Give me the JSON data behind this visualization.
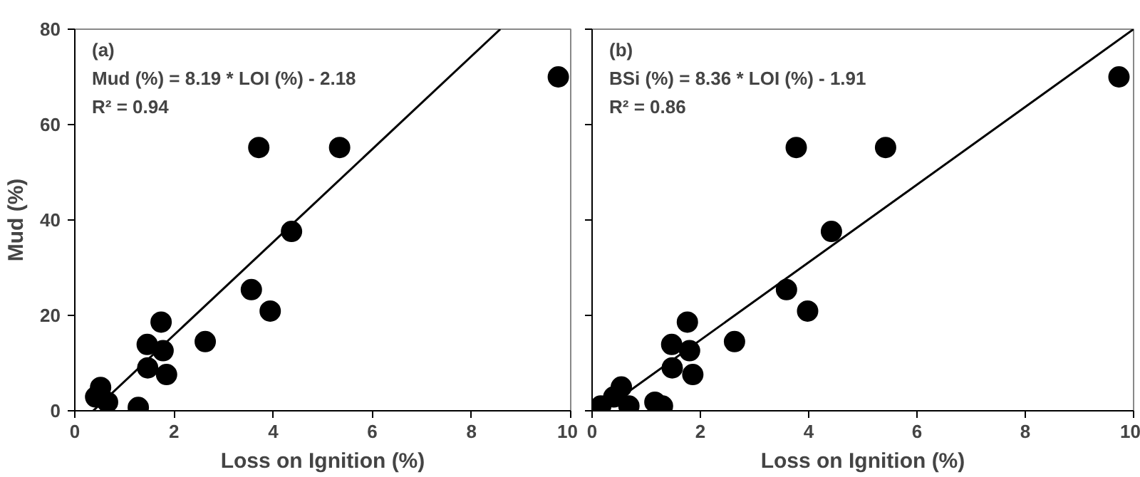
{
  "chart_data": [
    {
      "type": "scatter",
      "xlabel": "Loss on Ignition (%)",
      "ylabel": "Mud (%)",
      "annotations": [
        "(a)",
        "Mud (%) = 8.19  * LOI (%) - 2.18",
        "R² =  0.94"
      ],
      "xlim": [
        0,
        10
      ],
      "ylim": [
        0,
        80
      ],
      "xticks": [
        0,
        2,
        4,
        6,
        8,
        10
      ],
      "yticks": [
        0,
        20,
        40,
        60,
        80
      ],
      "grid": false,
      "marker": "circle",
      "series": [
        {
          "color": "#000000",
          "x": [
            9.75,
            3.71,
            5.34,
            4.37,
            3.56,
            3.94,
            1.74,
            1.46,
            1.78,
            2.63,
            1.47,
            1.85,
            1.28,
            0.52,
            0.42,
            0.66
          ],
          "values": [
            70,
            55.2,
            55.2,
            37.6,
            25.4,
            20.9,
            18.6,
            13.9,
            12.6,
            14.5,
            9.0,
            7.6,
            0.7,
            4.9,
            2.9,
            1.8
          ]
        },
        {
          "type": "line",
          "color": "#000000",
          "marker": "none",
          "line_style": "solid",
          "x": [
            0.37,
            8.58
          ],
          "values": [
            0,
            80
          ]
        }
      ]
    },
    {
      "type": "scatter",
      "xlabel": "Loss on Ignition (%)",
      "annotations": [
        "(b)",
        "BSi (%) = 8.36  * LOI (%) - 1.91",
        "R² =  0.86"
      ],
      "xlim": [
        0,
        10
      ],
      "ylim": [
        0,
        80
      ],
      "xticks": [
        0,
        2,
        4,
        6,
        8,
        10
      ],
      "yticks": [
        {
          "value": 0,
          "label": null
        },
        {
          "value": 20,
          "label": null
        },
        {
          "value": 40,
          "label": null
        },
        {
          "value": 60,
          "label": null
        },
        {
          "value": 80,
          "label": null
        }
      ],
      "tick_labels": "x",
      "grid": false,
      "marker": "circle",
      "series": [
        {
          "color": "#000000",
          "x": [
            9.73,
            3.77,
            5.42,
            4.42,
            3.59,
            3.98,
            1.76,
            1.47,
            1.8,
            2.63,
            1.48,
            1.86,
            0.16,
            0.54,
            0.4,
            0.64,
            0.68,
            1.16,
            1.3
          ],
          "values": [
            70,
            55.2,
            55.2,
            37.6,
            25.4,
            20.9,
            18.6,
            13.9,
            12.6,
            14.5,
            9.0,
            7.6,
            1.0,
            5.0,
            2.9,
            null,
            1.0,
            1.8,
            1.0
          ]
        },
        {
          "type": "line",
          "color": "#000000",
          "marker": "none",
          "line_style": "solid",
          "x": [
            0.18,
            10
          ],
          "values": [
            0,
            80
          ]
        }
      ]
    }
  ]
}
